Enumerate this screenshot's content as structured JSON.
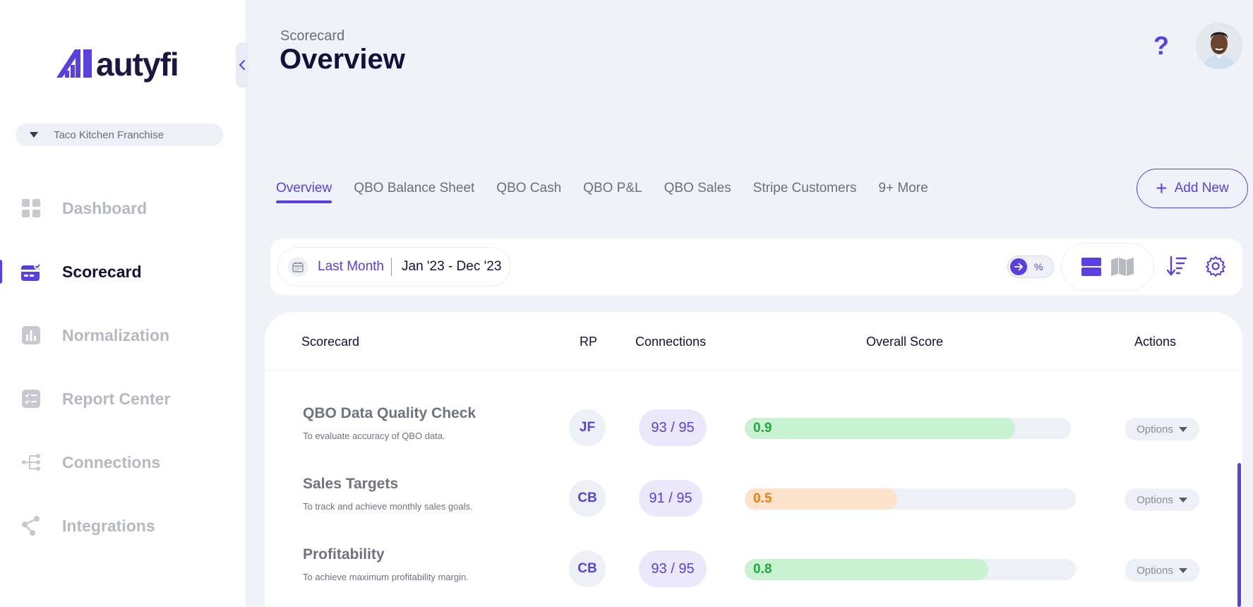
{
  "brand": {
    "name_a": "auty",
    "name_b": "fi",
    "accent": "#5b3fe0"
  },
  "org_select": {
    "label": "Taco Kitchen Franchise"
  },
  "sidebar": {
    "items": [
      {
        "label": "Dashboard",
        "icon": "grid-icon",
        "active": false
      },
      {
        "label": "Scorecard",
        "icon": "scorecard-icon",
        "active": true
      },
      {
        "label": "Normalization",
        "icon": "bar-chart-icon",
        "active": false
      },
      {
        "label": "Report Center",
        "icon": "checklist-icon",
        "active": false
      },
      {
        "label": "Connections",
        "icon": "connections-icon",
        "active": false
      },
      {
        "label": "Integrations",
        "icon": "share-icon",
        "active": false
      }
    ]
  },
  "header": {
    "breadcrumb": "Scorecard",
    "title": "Overview",
    "help": "?"
  },
  "tabs": [
    {
      "label": "Overview",
      "active": true
    },
    {
      "label": "QBO Balance Sheet"
    },
    {
      "label": "QBO Cash"
    },
    {
      "label": "QBO P&L"
    },
    {
      "label": "QBO Sales"
    },
    {
      "label": "Stripe Customers"
    },
    {
      "label": "9+ More"
    }
  ],
  "add_new": {
    "label": "Add New"
  },
  "filters": {
    "preset": "Last Month",
    "range": "Jan '23 - Dec '23",
    "toggle_label": "%"
  },
  "table": {
    "columns": {
      "scorecard": "Scorecard",
      "rp": "RP",
      "connections": "Connections",
      "score": "Overall Score",
      "actions": "Actions"
    },
    "rows": [
      {
        "title": "QBO Data Quality Check",
        "subtitle": "To evaluate accuracy of QBO data.",
        "rp": "JF",
        "connections": "93 / 95",
        "score": "0.9",
        "score_value": 0.9,
        "level": "good",
        "action": "Options"
      },
      {
        "title": "Sales Targets",
        "subtitle": "To track and achieve monthly sales goals.",
        "rp": "CB",
        "connections": "91 / 95",
        "score": "0.5",
        "score_value": 0.5,
        "level": "mid",
        "action": "Options"
      },
      {
        "title": "Profitability",
        "subtitle": "To achieve maximum profitability margin.",
        "rp": "CB",
        "connections": "93 / 95",
        "score": "0.8",
        "score_value": 0.8,
        "level": "good",
        "action": "Options"
      }
    ]
  }
}
